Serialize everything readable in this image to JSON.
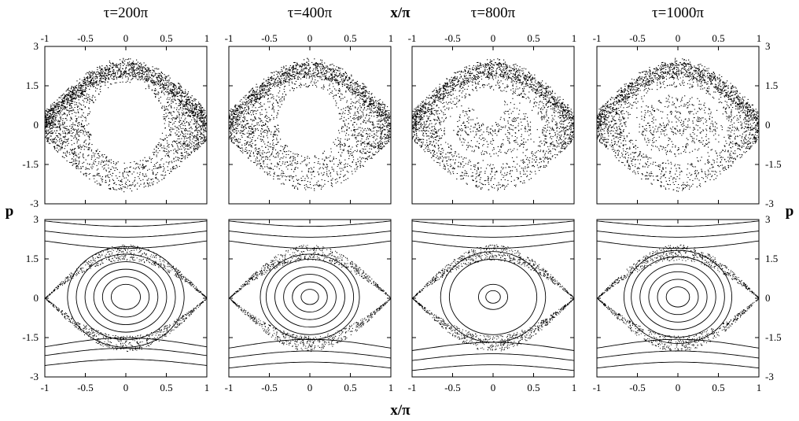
{
  "figure": {
    "x_label": "x/π",
    "y_label": "p",
    "colors": {
      "ink": "#000000",
      "background": "#ffffff"
    }
  },
  "chart_data": [
    {
      "type": "scatter",
      "title": "τ=200π",
      "row": "top",
      "xlabel": "x/π",
      "ylabel": "p",
      "xlim": [
        -1,
        1
      ],
      "ylim": [
        -3,
        3
      ],
      "xticks": [
        "-1",
        "-0.5",
        "0",
        "0.5",
        "1"
      ],
      "yticks": [
        "-3",
        "-1.5",
        "0",
        "1.5",
        "3"
      ],
      "grid": false,
      "pattern": {
        "kind": "stroboscopic",
        "density": 0.55,
        "hole_center": [
          0,
          0.1
        ],
        "hole_radius": [
          0.46,
          1.5
        ],
        "secondary_islands": false
      }
    },
    {
      "type": "scatter",
      "title": "τ=400π",
      "row": "top",
      "xlabel": "x/π",
      "ylabel": "p",
      "xlim": [
        -1,
        1
      ],
      "ylim": [
        -3,
        3
      ],
      "xticks": [
        "-1",
        "-0.5",
        "0",
        "0.5",
        "1"
      ],
      "yticks": [
        "-3",
        "-1.5",
        "0",
        "1.5",
        "3"
      ],
      "grid": false,
      "pattern": {
        "kind": "stroboscopic",
        "density": 0.6,
        "hole_center": [
          -0.02,
          0.15
        ],
        "hole_radius": [
          0.38,
          1.3
        ],
        "secondary_islands": false
      }
    },
    {
      "type": "scatter",
      "title": "τ=800π",
      "row": "top",
      "xlabel": "x/π",
      "ylabel": "p",
      "xlim": [
        -1,
        1
      ],
      "ylim": [
        -3,
        3
      ],
      "xticks": [
        "-1",
        "-0.5",
        "0",
        "0.5",
        "1"
      ],
      "yticks": [
        "-3",
        "-1.5",
        "0",
        "1.5",
        "3"
      ],
      "grid": false,
      "pattern": {
        "kind": "stroboscopic",
        "density": 0.75,
        "white_ring_center": [
          0,
          -0.1
        ],
        "white_ring_radius": [
          0.6,
          1.4
        ],
        "hole_center": [
          -0.05,
          0.7
        ],
        "hole_radius": [
          0.18,
          0.65
        ]
      }
    },
    {
      "type": "scatter",
      "title": "τ=1000π",
      "row": "top",
      "xlabel": "x/π",
      "ylabel": "p",
      "xlim": [
        -1,
        1
      ],
      "ylim": [
        -3,
        3
      ],
      "xticks": [
        "-1",
        "-0.5",
        "0",
        "0.5",
        "1"
      ],
      "yticks": [
        "-3",
        "-1.5",
        "0",
        "1.5",
        "3"
      ],
      "grid": false,
      "pattern": {
        "kind": "stroboscopic",
        "density": 0.8,
        "white_ring_center": [
          0,
          0
        ],
        "white_ring_radius": [
          0.62,
          1.45
        ],
        "white_spot": [
          0,
          -0.6
        ]
      }
    },
    {
      "type": "line",
      "title": "",
      "row": "bottom",
      "xlabel": "x/π",
      "ylabel": "p",
      "xlim": [
        -1,
        1
      ],
      "ylim": [
        -3,
        3
      ],
      "xticks": [
        "-1",
        "-0.5",
        "0",
        "0.5",
        "1"
      ],
      "yticks": [
        "-3",
        "-1.5",
        "0",
        "1.5",
        "3"
      ],
      "grid": false,
      "pattern": {
        "kind": "poincare",
        "outer_curves": [
          2.3,
          2.7,
          3.1
        ],
        "lower_curves": [
          -1.95,
          -2.3,
          -2.7
        ],
        "inner_rings": [
          0.1,
          0.16,
          0.22,
          0.28,
          0.34,
          0.4
        ],
        "chaotic_density": 0.5
      }
    },
    {
      "type": "line",
      "title": "",
      "row": "bottom",
      "xlabel": "x/π",
      "ylabel": "p",
      "xlim": [
        -1,
        1
      ],
      "ylim": [
        -3,
        3
      ],
      "xticks": [
        "-1",
        "-0.5",
        "0",
        "0.5",
        "1"
      ],
      "yticks": [
        "-3",
        "-1.5",
        "0",
        "1.5",
        "3"
      ],
      "grid": false,
      "pattern": {
        "kind": "poincare",
        "outer_curves": [
          2.3,
          2.7,
          3.1
        ],
        "lower_curves": [
          -2.0,
          -2.4,
          -2.8
        ],
        "inner_rings": [
          0.06,
          0.12,
          0.18,
          0.24,
          0.3,
          0.34
        ],
        "chaotic_density": 0.5
      }
    },
    {
      "type": "line",
      "title": "",
      "row": "bottom",
      "xlabel": "x/π",
      "ylabel": "p",
      "xlim": [
        -1,
        1
      ],
      "ylim": [
        -3,
        3
      ],
      "xticks": [
        "-1",
        "-0.5",
        "0",
        "0.5",
        "1"
      ],
      "yticks": [
        "-3",
        "-1.5",
        "0",
        "1.5",
        "3"
      ],
      "grid": false,
      "pattern": {
        "kind": "poincare",
        "outer_curves": [
          2.3,
          2.7,
          3.1
        ],
        "lower_curves": [
          -2.1,
          -2.5,
          -2.9
        ],
        "inner_rings": [
          0.05,
          0.1,
          0.3,
          0.36
        ],
        "chaotic_density": 0.55
      }
    },
    {
      "type": "line",
      "title": "",
      "row": "bottom",
      "xlabel": "x/π",
      "ylabel": "p",
      "xlim": [
        -1,
        1
      ],
      "ylim": [
        -3,
        3
      ],
      "xticks": [
        "-1",
        "-0.5",
        "0",
        "0.5",
        "1"
      ],
      "yticks": [
        "-3",
        "-1.5",
        "0",
        "1.5",
        "3"
      ],
      "grid": false,
      "pattern": {
        "kind": "poincare",
        "outer_curves": [
          2.3,
          2.7,
          3.1
        ],
        "lower_curves": [
          -2.0,
          -2.4,
          -2.8
        ],
        "inner_rings": [
          0.08,
          0.14,
          0.2,
          0.26,
          0.32,
          0.37
        ],
        "chaotic_density": 0.5
      }
    }
  ]
}
